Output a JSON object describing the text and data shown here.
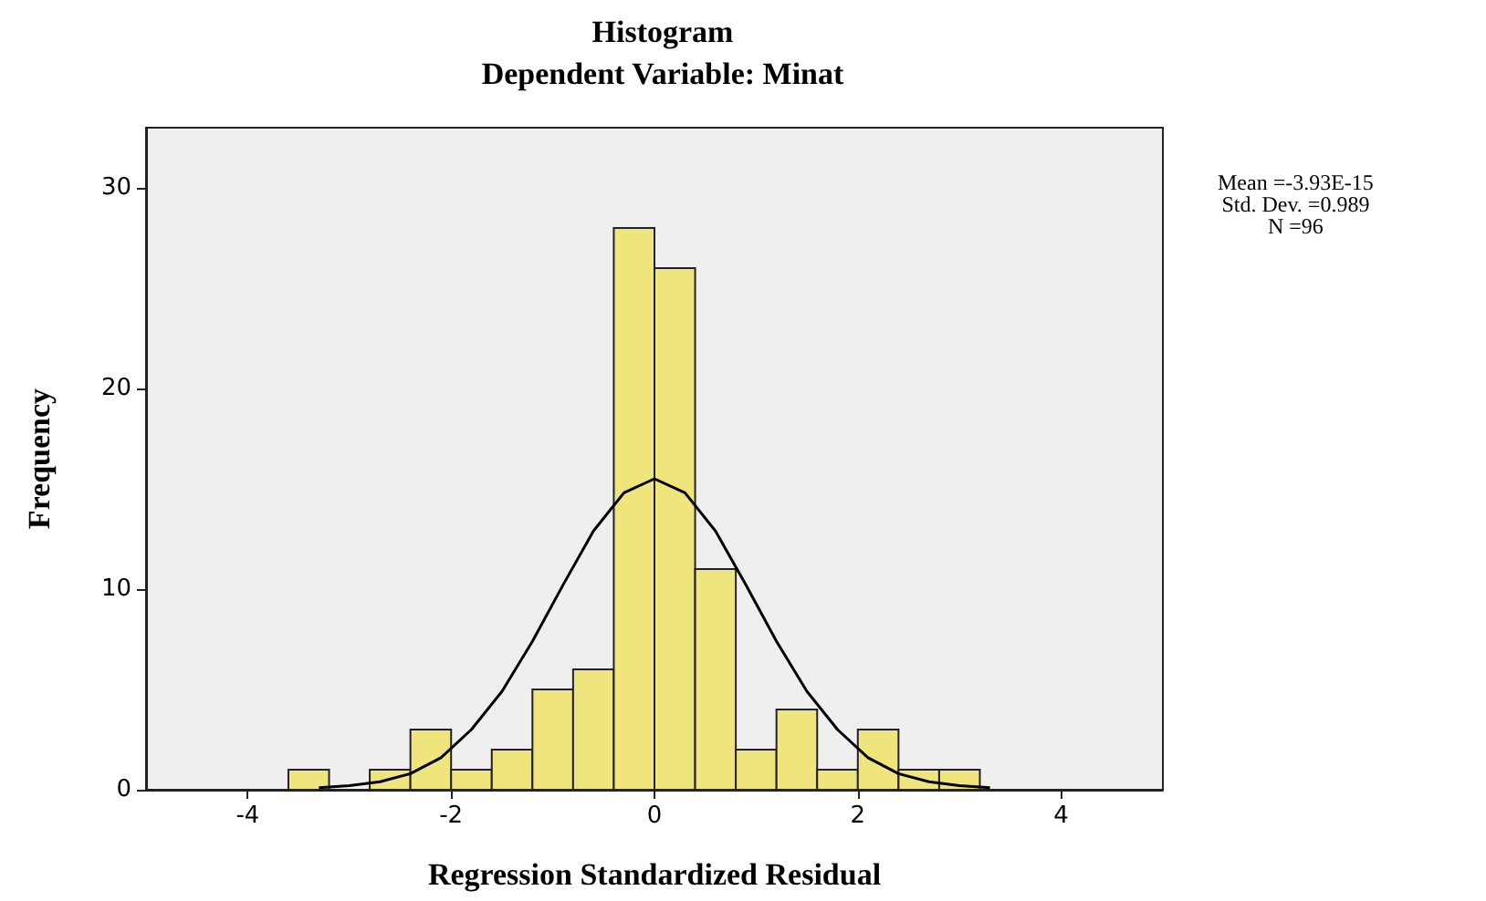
{
  "chart_data": {
    "type": "histogram",
    "title": "Histogram",
    "subtitle": "Dependent Variable: Minat",
    "xlabel": "Regression Standardized Residual",
    "ylabel": "Frequency",
    "bins": [
      -3.6,
      -3.2,
      -2.8,
      -2.4,
      -2.0,
      -1.6,
      -1.2,
      -0.8,
      -0.4,
      0,
      0.4,
      0.8,
      1.2,
      1.6,
      2.0,
      2.4,
      2.8,
      3.2
    ],
    "values": [
      1,
      0,
      1,
      3,
      1,
      2,
      5,
      6,
      28,
      26,
      11,
      2,
      4,
      1,
      3,
      1,
      1
    ],
    "color": "#f0e47c",
    "series": [
      {
        "type": "line",
        "color": "#000000",
        "x": [
          -3.3,
          -3.0,
          -2.7,
          -2.4,
          -2.1,
          -1.8,
          -1.5,
          -1.2,
          -0.9,
          -0.6,
          -0.3,
          0,
          0.3,
          0.6,
          0.9,
          1.2,
          1.5,
          1.8,
          2.1,
          2.4,
          2.7,
          3.0,
          3.3
        ],
        "values": [
          0.1,
          0.2,
          0.4,
          0.8,
          1.6,
          3.0,
          4.9,
          7.4,
          10.2,
          12.9,
          14.8,
          15.5,
          14.8,
          12.9,
          10.2,
          7.4,
          4.9,
          3.0,
          1.6,
          0.8,
          0.4,
          0.2,
          0.1
        ]
      }
    ],
    "xlim": [
      -5,
      5
    ],
    "xticks": [
      -4,
      -2,
      0,
      2,
      4
    ],
    "ylim": [
      0,
      33
    ],
    "yticks": [
      0,
      10,
      20,
      30
    ],
    "grid": false,
    "marker": "none",
    "annotations": [
      "Mean =-3.93E-15",
      "Std. Dev. =0.989",
      "N =96"
    ]
  }
}
